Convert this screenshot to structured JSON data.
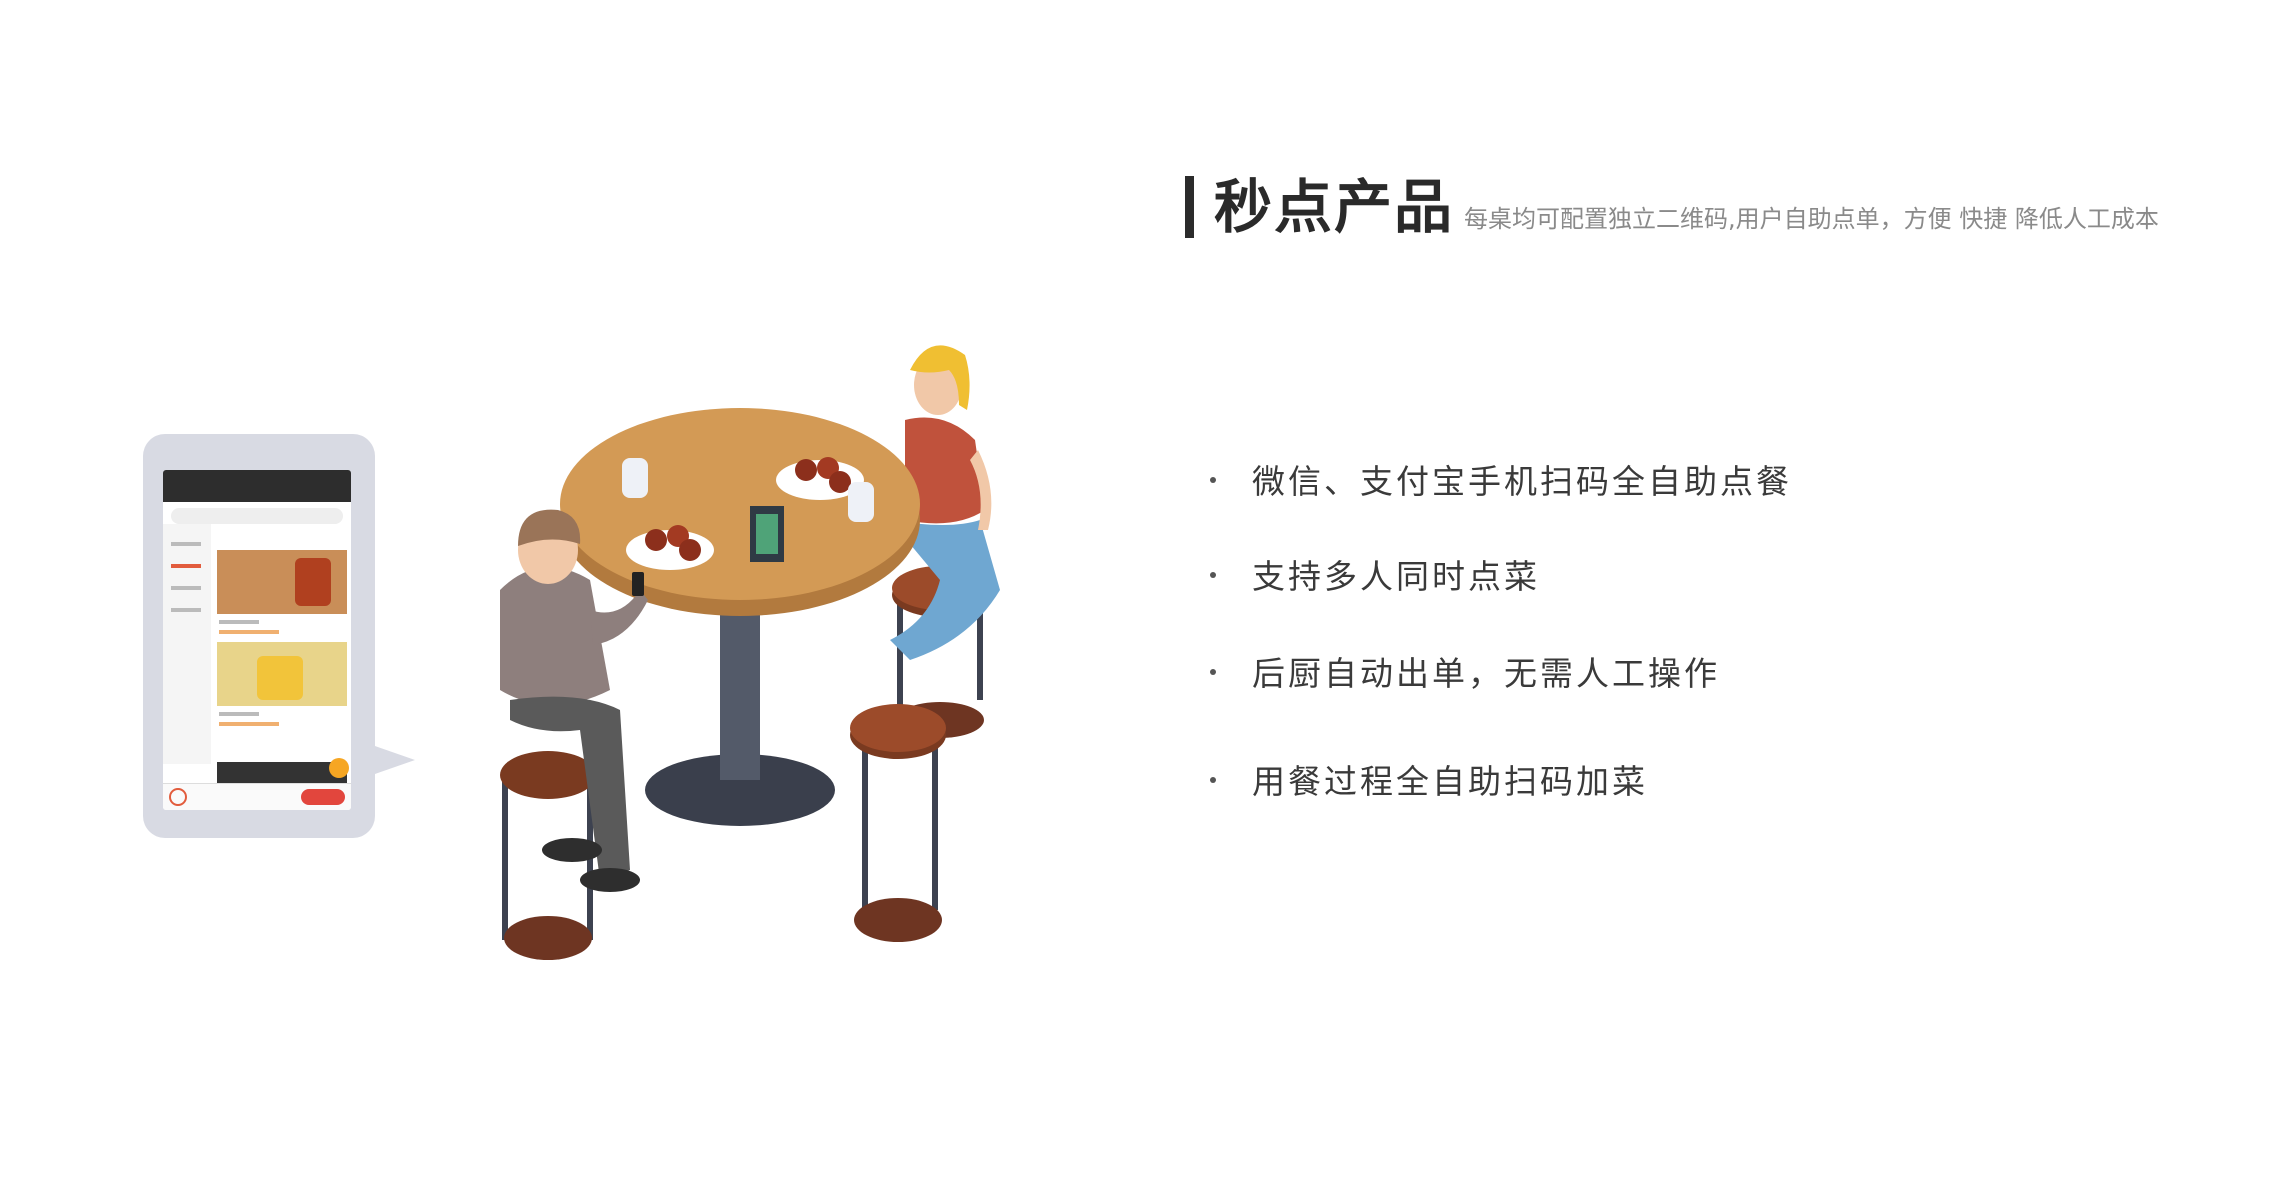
{
  "header": {
    "title": "秒点产品",
    "subtitle": "每桌均可配置独立二维码,用户自助点单，方便 快捷 降低人工成本"
  },
  "features": [
    "微信、支付宝手机扫码全自助点餐",
    "支持多人同时点菜",
    "后厨自动出单，无需人工操作",
    "用餐过程全自助扫码加菜"
  ],
  "colors": {
    "accent_bar": "#2b2b2b",
    "card_bg": "#d8dae3",
    "table_top": "#c9904d",
    "stool_seat": "#8a3f22"
  }
}
